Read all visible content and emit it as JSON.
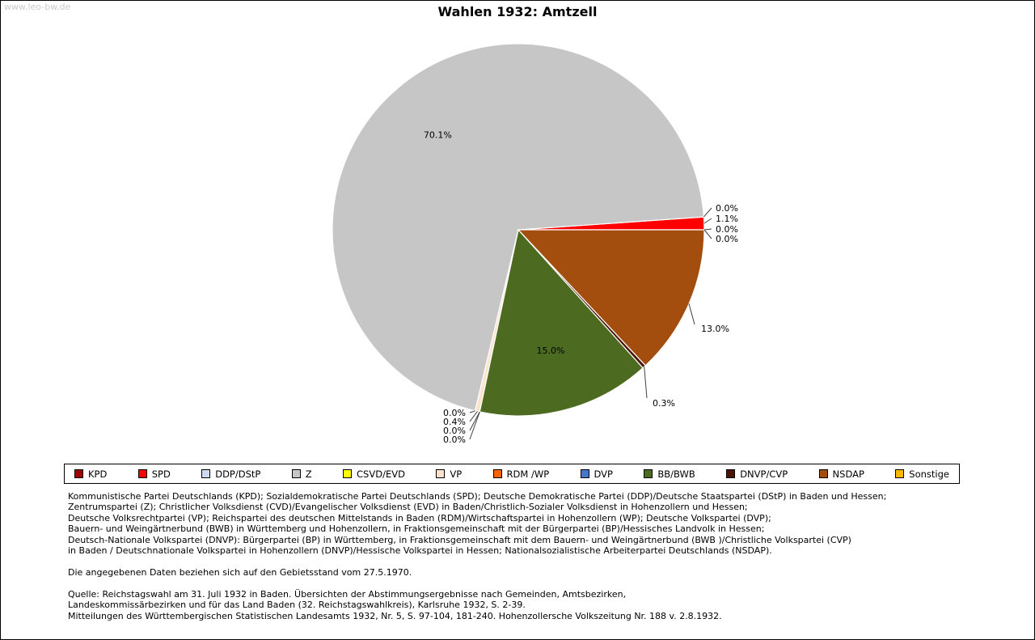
{
  "watermark": "www.leo-bw.de",
  "title": "Wahlen 1932: Amtzell",
  "chart_data": {
    "type": "pie",
    "title": "Wahlen 1932: Amtzell",
    "unit": "percent",
    "start_angle_deg": 0,
    "direction": "counterclockwise",
    "legend_position": "bottom",
    "parties": [
      "KPD",
      "SPD",
      "DDP/DStP",
      "Z",
      "CSVD/EVD",
      "VP",
      "RDM /WP",
      "DVP",
      "BB/BWB",
      "DNVP/CVP",
      "NSDAP",
      "Sonstige"
    ],
    "values": [
      0.0,
      1.1,
      0.0,
      70.1,
      0.0,
      0.4,
      0.0,
      0.0,
      15.0,
      0.3,
      13.0,
      0.0
    ],
    "labels": [
      "0.0%",
      "1.1%",
      "0.0%",
      "70.1%",
      "0.0%",
      "0.4%",
      "0.0%",
      "0.0%",
      "15.0%",
      "0.3%",
      "13.0%",
      "0.0%"
    ],
    "colors": [
      "#a00000",
      "#ff0000",
      "#ccd9f2",
      "#c6c6c6",
      "#ffff00",
      "#fbe3cd",
      "#f96302",
      "#4a76c7",
      "#4c6a20",
      "#4a1505",
      "#a34d0e",
      "#fcb805"
    ]
  },
  "notes": {
    "party_descriptions": [
      "Kommunistische Partei Deutschlands (KPD); Sozialdemokratische Partei Deutschlands (SPD); Deutsche Demokratische Partei (DDP)/Deutsche Staatspartei (DStP) in Baden und Hessen;",
      "Zentrumspartei (Z); Christlicher Volksdienst (CVD)/Evangelischer Volksdienst (EVD) in Baden/Christlich-Sozialer Volksdienst in Hohenzollern und Hessen;",
      "Deutsche Volksrechtpartei (VP); Reichspartei des deutschen Mittelstands in Baden (RDM)/Wirtschaftspartei in Hohenzollern (WP); Deutsche Volkspartei (DVP);",
      "Bauern- und Weingärtnerbund (BWB) in Württemberg und Hohenzollern, in Fraktionsgemeinschaft mit der Bürgerpartei (BP)/Hessisches Landvolk in Hessen;",
      "Deutsch-Nationale Volkspartei (DNVP): Bürgerpartei (BP) in Württemberg, in Fraktionsgemeinschaft mit dem Bauern- und Weingärtnerbund (BWB )/Christliche Volkspartei (CVP)",
      "in Baden / Deutschnationale Volkspartei in Hohenzollern (DNVP)/Hessische Volkspartei in Hessen; Nationalsozialistische Arbeiterpartei Deutschlands (NSDAP)."
    ],
    "territory_note": "Die angegebenen Daten beziehen sich auf den Gebietsstand vom 27.5.1970.",
    "source_lines": [
      "Quelle: Reichstagswahl am 31. Juli 1932 in Baden. Übersichten der Abstimmungsergebnisse nach Gemeinden, Amtsbezirken,",
      "Landeskommissärbezirken und für das Land Baden (32. Reichstagswahlkreis), Karlsruhe 1932, S. 2-39.",
      "Mitteilungen des Württembergischen Statistischen Landesamts 1932, Nr. 5, S. 97-104, 181-240. Hohenzollersche Volkszeitung Nr. 188 v. 2.8.1932."
    ]
  }
}
